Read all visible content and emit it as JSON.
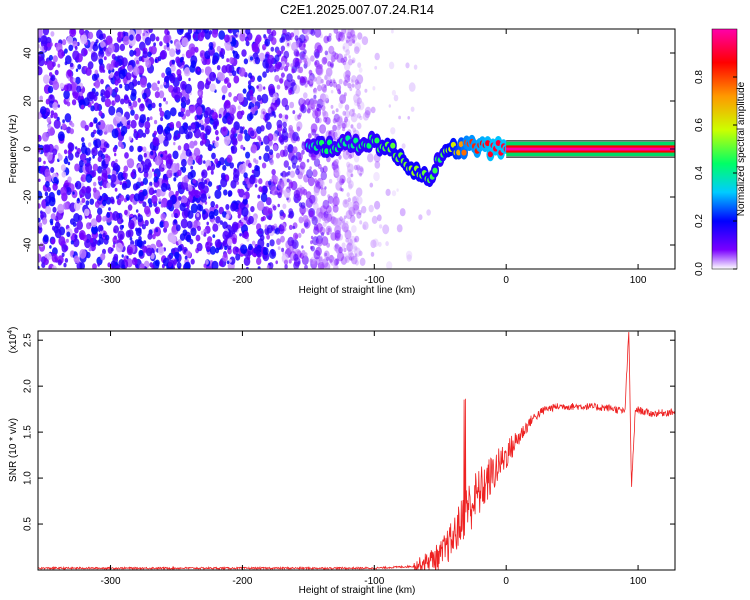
{
  "title": "C2E1.2025.007.07.24.R14",
  "chart_data": [
    {
      "type": "heatmap",
      "xlabel": "Height of straight line (km)",
      "ylabel": "Frequency (Hz)",
      "xlim": [
        -355,
        128
      ],
      "ylim": [
        -50,
        50
      ],
      "x_ticks": [
        -300,
        -200,
        -100,
        0,
        100
      ],
      "y_ticks": [
        -40,
        -20,
        0,
        20,
        40
      ],
      "colorbar": {
        "label": "Normalized spectral amplitude",
        "range": [
          0,
          1
        ],
        "ticks": [
          0.0,
          0.2,
          0.4,
          0.6,
          0.8
        ],
        "colors": [
          "#ffffff",
          "#7a00ff",
          "#0000ff",
          "#00ccff",
          "#00ff66",
          "#ccff00",
          "#ff9900",
          "#ff0000",
          "#ff00aa"
        ]
      },
      "ridge": [
        {
          "x": -150,
          "y": 0,
          "amp": 0.35
        },
        {
          "x": -140,
          "y": 1,
          "amp": 0.45
        },
        {
          "x": -120,
          "y": 2,
          "amp": 0.4
        },
        {
          "x": -100,
          "y": 3,
          "amp": 0.45
        },
        {
          "x": -90,
          "y": 1,
          "amp": 0.5
        },
        {
          "x": -80,
          "y": -4,
          "amp": 0.5
        },
        {
          "x": -70,
          "y": -8,
          "amp": 0.55
        },
        {
          "x": -60,
          "y": -12,
          "amp": 0.5
        },
        {
          "x": -50,
          "y": -5,
          "amp": 0.45
        },
        {
          "x": -40,
          "y": 0,
          "amp": 0.6
        },
        {
          "x": -30,
          "y": 1,
          "amp": 0.8
        },
        {
          "x": -20,
          "y": 1,
          "amp": 0.85
        },
        {
          "x": -10,
          "y": 0,
          "amp": 0.9
        },
        {
          "x": 0,
          "y": 0,
          "amp": 0.9
        },
        {
          "x": 50,
          "y": 0,
          "amp": 0.9
        },
        {
          "x": 90,
          "y": 0,
          "amp": 0.85
        },
        {
          "x": 128,
          "y": 0,
          "amp": 0.9
        }
      ]
    },
    {
      "type": "line",
      "xlabel": "Height of straight line (km)",
      "ylabel": "SNR (10 * v/v)",
      "y_multiplier": "(x10",
      "y_multiplier_exp": "4",
      "xlim": [
        -355,
        128
      ],
      "ylim": [
        0,
        2.6
      ],
      "x_ticks": [
        -300,
        -200,
        -100,
        0,
        100
      ],
      "y_ticks": [
        0.5,
        1.0,
        1.5,
        2.0,
        2.5
      ],
      "color": "#ee2222",
      "x": [
        -355,
        -300,
        -200,
        -100,
        -70,
        -50,
        -40,
        -30,
        -20,
        -10,
        0,
        10,
        20,
        30,
        40,
        60,
        80,
        90,
        93,
        95,
        98,
        110,
        128
      ],
      "y": [
        0.02,
        0.02,
        0.02,
        0.02,
        0.04,
        0.15,
        0.35,
        0.65,
        0.85,
        1.05,
        1.25,
        1.45,
        1.65,
        1.75,
        1.78,
        1.78,
        1.76,
        1.72,
        2.6,
        0.9,
        1.75,
        1.7,
        1.72
      ]
    }
  ]
}
